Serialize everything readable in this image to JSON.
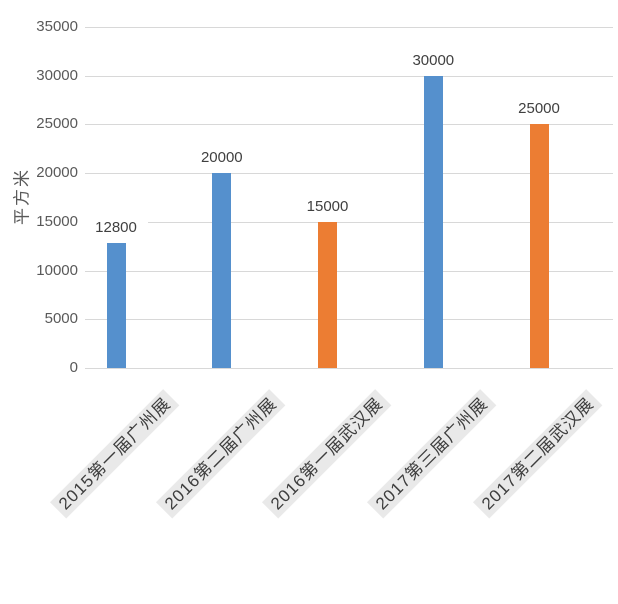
{
  "chart_data": {
    "type": "bar",
    "categories": [
      "2015第一届广州展",
      "2016第二届广州展",
      "2016第一届武汉展",
      "2017第三届广州展",
      "2017第二届武汉展"
    ],
    "values": [
      12800,
      20000,
      15000,
      30000,
      25000
    ],
    "data_labels": [
      "12800",
      "20000",
      "15000",
      "30000",
      "25000"
    ],
    "bar_colors": [
      "#5590cd",
      "#5590cd",
      "#ec7d33",
      "#5590cd",
      "#ec7d33"
    ],
    "title": "",
    "xlabel": "",
    "ylabel": "平方米",
    "ylim": [
      0,
      35000
    ],
    "ytick_interval": 5000,
    "yticks": [
      "0",
      "5000",
      "10000",
      "15000",
      "20000",
      "25000",
      "30000",
      "35000"
    ],
    "grid": true,
    "legend": "none",
    "colors": {
      "blue_bar": "#5590cd",
      "orange_bar": "#ec7d33",
      "gridline": "#d8d8d8",
      "axis_text": "#595959",
      "value_label_text": "#404040",
      "x_label_text": "#3d3d3d",
      "x_label_background": "#e9e9e9",
      "background": "#ffffff"
    }
  }
}
